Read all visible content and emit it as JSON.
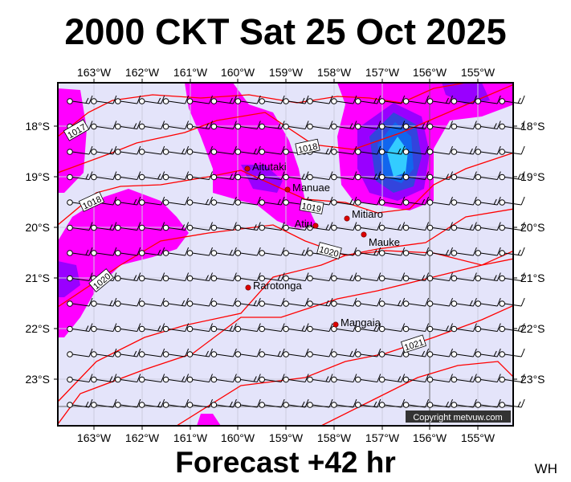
{
  "title": "2000 CKT Sat 25 Oct 2025",
  "footer": "Forecast +42 hr",
  "corner_label": "WH",
  "copyright": "Copyright metvuw.com",
  "lon_labels": [
    "163°W",
    "162°W",
    "161°W",
    "160°W",
    "159°W",
    "158°W",
    "157°W",
    "156°W",
    "155°W"
  ],
  "lat_labels": [
    "18°S",
    "19°S",
    "20°S",
    "21°S",
    "22°S",
    "23°S"
  ],
  "towns": [
    "Aitutaki",
    "Manuae",
    "Atiu",
    "Mitiaro",
    "Mauke",
    "Rarotonga",
    "Mangaia"
  ],
  "isobar_labels": [
    "1017",
    "1018",
    "1018",
    "1019",
    "1020",
    "1020",
    "1021"
  ],
  "colors": {
    "background": "#e4e4fa",
    "rain_light": "#ff00ff",
    "rain_mid": "#9900ff",
    "rain_heavy": "#0033cc",
    "rain_core": "#33ccff",
    "isobar": "#ff0000",
    "town": "#dd0000"
  }
}
